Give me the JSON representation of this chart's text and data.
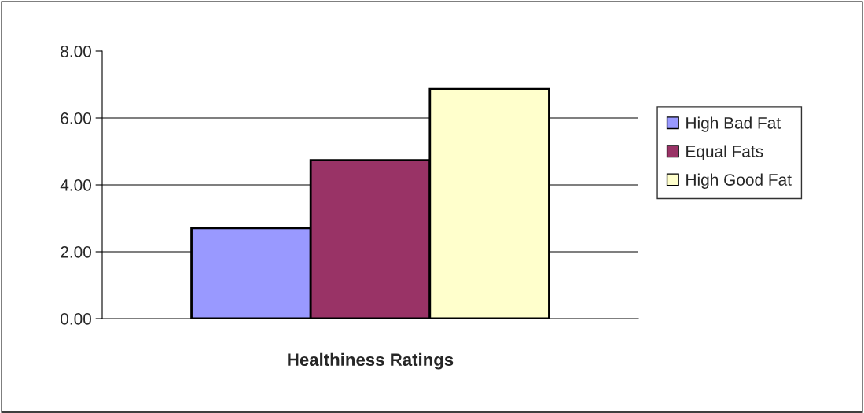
{
  "chart_data": {
    "type": "bar",
    "xlabel": "Healthiness Ratings",
    "categories": [
      null
    ],
    "series": [
      {
        "name": "High Bad Fat",
        "color": "#9999ff",
        "values": [
          2.71
        ]
      },
      {
        "name": "Equal Fats",
        "color": "#993366",
        "values": [
          4.74
        ]
      },
      {
        "name": "High Good Fat",
        "color": "#ffffcc",
        "values": [
          6.87
        ]
      }
    ],
    "ylim": [
      0,
      8
    ],
    "yticks": [
      {
        "value": 0,
        "label": "0.00"
      },
      {
        "value": 2,
        "label": "2.00"
      },
      {
        "value": 4,
        "label": "4.00"
      },
      {
        "value": 6,
        "label": "6.00"
      },
      {
        "value": 8,
        "label": "8.00"
      }
    ],
    "grid": "y",
    "legend": "right"
  }
}
